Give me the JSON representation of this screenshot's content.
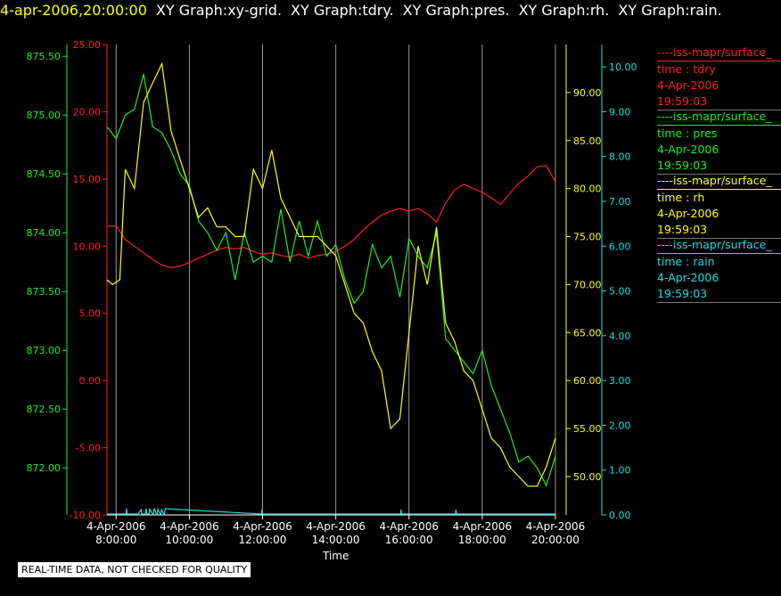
{
  "header": {
    "timestamp": "4-apr-2006,20:00:00",
    "graphs": [
      "XY Graph:xy-grid.",
      "XY Graph:tdry.",
      "XY Graph:pres.",
      "XY Graph:rh.",
      "XY Graph:rain."
    ]
  },
  "legend": [
    {
      "series": "----iss-mapr/surface_",
      "var": "time : tdry",
      "date": "4-Apr-2006",
      "time": "19:59:03",
      "color": "#ff2020"
    },
    {
      "series": "----iss-mapr/surface_",
      "var": "time : pres",
      "date": "4-Apr-2006",
      "time": "19:59:03",
      "color": "#22ee22"
    },
    {
      "series": "----iss-mapr/surface_",
      "var": "time : rh",
      "date": "4-Apr-2006",
      "time": "19:59:03",
      "color": "#ffff00"
    },
    {
      "series": "----iss-mapr/surface_",
      "var": "time : rain",
      "date": "4-Apr-2006",
      "time": "19:59:03",
      "color": "#22dddd"
    }
  ],
  "disclaimer": "REAL-TIME DATA, NOT CHECKED FOR QUALITY",
  "chart_data": {
    "type": "line",
    "xlabel": "Time",
    "xlim": [
      7.75,
      20.0
    ],
    "x_ticks": [
      {
        "v": 8,
        "d": "4-Apr-2006",
        "t": "8:00:00"
      },
      {
        "v": 10,
        "d": "4-Apr-2006",
        "t": "10:00:00"
      },
      {
        "v": 12,
        "d": "4-Apr-2006",
        "t": "12:00:00"
      },
      {
        "v": 14,
        "d": "4-Apr-2006",
        "t": "14:00:00"
      },
      {
        "v": 16,
        "d": "4-Apr-2006",
        "t": "16:00:00"
      },
      {
        "v": 18,
        "d": "4-Apr-2006",
        "t": "18:00:00"
      },
      {
        "v": 20,
        "d": "4-Apr-2006",
        "t": "20:00:00"
      }
    ],
    "grid": "vertical",
    "axes": [
      {
        "name": "tdry",
        "side": "left",
        "color": "#ff2020",
        "ylim": [
          -10,
          25
        ],
        "ticks": [
          "-10.00",
          "-5.00",
          "0.00",
          "5.00",
          "10.00",
          "15.00",
          "20.00",
          "25.00"
        ]
      },
      {
        "name": "pres",
        "side": "left",
        "color": "#22ee22",
        "ylim": [
          871.6,
          875.6
        ],
        "ticks": [
          "872.00",
          "872.50",
          "873.00",
          "873.50",
          "874.00",
          "874.50",
          "875.00",
          "875.50"
        ]
      },
      {
        "name": "rh",
        "side": "right",
        "color": "#ffff00",
        "ylim": [
          46.0,
          95.0
        ],
        "ticks": [
          "50.00",
          "55.00",
          "60.00",
          "65.00",
          "70.00",
          "75.00",
          "80.00",
          "85.00",
          "90.00"
        ]
      },
      {
        "name": "rain",
        "side": "right",
        "color": "#22dddd",
        "ylim": [
          0,
          10.5
        ],
        "ticks": [
          "0.00",
          "1.00",
          "2.00",
          "3.00",
          "4.00",
          "5.00",
          "6.00",
          "7.00",
          "8.00",
          "9.00",
          "10.00"
        ]
      }
    ],
    "series": [
      {
        "axis": "tdry",
        "color": "#ff2020",
        "x": [
          7.75,
          8.0,
          8.25,
          8.5,
          8.75,
          9.0,
          9.25,
          9.5,
          9.75,
          10.0,
          10.25,
          10.5,
          10.75,
          11.0,
          11.25,
          11.5,
          11.75,
          12.0,
          12.25,
          12.5,
          12.75,
          13.0,
          13.25,
          13.5,
          13.75,
          14.0,
          14.25,
          14.5,
          14.75,
          15.0,
          15.25,
          15.5,
          15.75,
          16.0,
          16.25,
          16.5,
          16.75,
          17.0,
          17.25,
          17.5,
          17.75,
          18.0,
          18.25,
          18.5,
          18.75,
          19.0,
          19.25,
          19.5,
          19.75,
          20.0
        ],
        "y": [
          11.5,
          11.5,
          10.5,
          10,
          9.5,
          9,
          8.6,
          8.4,
          8.5,
          8.8,
          9.1,
          9.4,
          9.7,
          9.9,
          9.8,
          9.9,
          9.6,
          9.4,
          9.5,
          9.3,
          9.2,
          9.4,
          9.1,
          9.3,
          9.4,
          9.6,
          10.0,
          10.5,
          11.2,
          11.8,
          12.3,
          12.6,
          12.8,
          12.6,
          12.8,
          12.4,
          11.8,
          13.2,
          14.2,
          14.6,
          14.3,
          14.0,
          13.6,
          13.1,
          13.9,
          14.7,
          15.2,
          15.9,
          16.0,
          14.8
        ]
      },
      {
        "axis": "pres",
        "color": "#22ee22",
        "x": [
          7.75,
          8.0,
          8.25,
          8.5,
          8.75,
          9.0,
          9.25,
          9.5,
          9.75,
          10.0,
          10.25,
          10.5,
          10.75,
          11.0,
          11.25,
          11.5,
          11.75,
          12.0,
          12.25,
          12.5,
          12.75,
          13.0,
          13.25,
          13.5,
          13.75,
          14.0,
          14.25,
          14.5,
          14.75,
          15.0,
          15.25,
          15.5,
          15.75,
          16.0,
          16.25,
          16.5,
          16.75,
          17.0,
          17.25,
          17.5,
          17.75,
          18.0,
          18.25,
          18.5,
          18.75,
          19.0,
          19.25,
          19.5,
          19.75,
          20.0
        ],
        "y": [
          874.9,
          874.8,
          875.0,
          875.05,
          875.35,
          874.9,
          874.85,
          874.7,
          874.5,
          874.4,
          874.1,
          874.0,
          873.85,
          874.0,
          873.6,
          874.0,
          873.75,
          873.8,
          873.75,
          874.2,
          873.75,
          874.1,
          873.8,
          874.1,
          873.8,
          873.9,
          873.6,
          873.4,
          873.5,
          873.9,
          873.7,
          873.8,
          873.45,
          873.95,
          873.8,
          873.7,
          874.0,
          873.1,
          873.0,
          872.9,
          872.8,
          873.0,
          872.7,
          872.5,
          872.3,
          872.05,
          872.1,
          872.0,
          871.85,
          872.1
        ]
      },
      {
        "axis": "rh",
        "color": "#ffff00",
        "x": [
          7.75,
          7.9,
          8.1,
          8.25,
          8.5,
          8.75,
          9.0,
          9.25,
          9.5,
          9.75,
          10.0,
          10.25,
          10.5,
          10.75,
          11.0,
          11.25,
          11.5,
          11.75,
          12.0,
          12.25,
          12.5,
          12.75,
          13.0,
          13.25,
          13.5,
          13.75,
          14.0,
          14.25,
          14.5,
          14.75,
          15.0,
          15.25,
          15.5,
          15.75,
          16.0,
          16.25,
          16.5,
          16.75,
          17.0,
          17.25,
          17.5,
          17.75,
          18.0,
          18.25,
          18.5,
          18.75,
          19.0,
          19.25,
          19.5,
          19.75,
          20.0
        ],
        "y": [
          70.5,
          70,
          70.5,
          82,
          80,
          89,
          91,
          93,
          86,
          83,
          80,
          77,
          78,
          76,
          76,
          75,
          75,
          82,
          80,
          84,
          79,
          77,
          75,
          75,
          75,
          74,
          73,
          70,
          67,
          66,
          63,
          61,
          55,
          56,
          65,
          74,
          70,
          76,
          66,
          64,
          61,
          60,
          57,
          54,
          53,
          51,
          50,
          49,
          49,
          51,
          54
        ]
      },
      {
        "axis": "rain",
        "color": "#22dddd",
        "x": [
          7.75,
          8.27,
          8.28,
          8.3,
          8.6,
          8.68,
          8.7,
          8.8,
          8.82,
          8.84,
          8.9,
          8.92,
          9.0,
          9.02,
          9.04,
          9.1,
          9.12,
          9.14,
          9.2,
          9.22,
          9.24,
          9.3,
          9.32,
          9.34,
          11.97,
          11.98,
          12.0,
          15.77,
          15.78,
          15.8,
          17.27,
          17.28,
          17.3,
          20.0
        ],
        "y": [
          0.02,
          0.02,
          0.15,
          0.02,
          0.02,
          0.12,
          0.02,
          0.02,
          0.14,
          0.02,
          0.02,
          0.13,
          0.02,
          0.02,
          0.15,
          0.02,
          0.02,
          0.13,
          0.02,
          0.02,
          0.12,
          0.02,
          0.02,
          0.14,
          0.02,
          0.12,
          0.02,
          0.02,
          0.12,
          0.02,
          0.02,
          0.12,
          0.02,
          0.02
        ]
      }
    ]
  }
}
